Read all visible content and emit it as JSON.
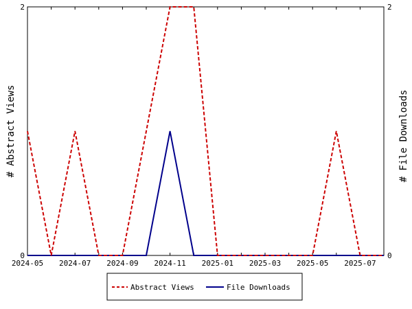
{
  "chart_data": {
    "type": "line",
    "x": [
      "2024-05",
      "2024-06",
      "2024-07",
      "2024-08",
      "2024-09",
      "2024-10",
      "2024-11",
      "2024-12",
      "2025-01",
      "2025-02",
      "2025-03",
      "2025-04",
      "2025-05",
      "2025-06",
      "2025-07",
      "2025-08"
    ],
    "x_tick_labels": [
      "2024-05",
      "2024-07",
      "2024-09",
      "2024-11",
      "2025-01",
      "2025-03",
      "2025-05",
      "2025-07"
    ],
    "series": [
      {
        "name": "Abstract Views",
        "values": [
          1,
          0,
          1,
          0,
          0,
          1,
          2,
          2,
          0,
          0,
          0,
          0,
          0,
          1,
          0,
          0
        ],
        "color": "#cc0000",
        "style": "dashed",
        "axis": "left"
      },
      {
        "name": "File Downloads",
        "values": [
          0,
          0,
          0,
          0,
          0,
          0,
          1,
          0,
          0,
          0,
          0,
          0,
          0,
          0,
          0,
          0
        ],
        "color": "#00008b",
        "style": "solid",
        "axis": "right"
      }
    ],
    "ylabel_left": "# Abstract Views",
    "ylabel_right": "# File Downloads",
    "ylim_left": [
      0,
      2
    ],
    "ylim_right": [
      0,
      2
    ],
    "y_tick_labels": [
      "0",
      "2"
    ],
    "grid": false,
    "legend_position": "bottom"
  }
}
